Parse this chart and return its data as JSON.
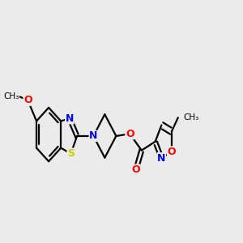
{
  "background_color": "#ebebeb",
  "bond_color": "#000000",
  "atom_colors": {
    "N": "#0000ee",
    "O": "#ff0000",
    "S": "#cccc00",
    "C": "#000000"
  },
  "figsize": [
    3.0,
    3.0
  ],
  "dpi": 100,
  "xlim": [
    0.0,
    1.0
  ],
  "ylim": [
    0.3,
    0.85
  ]
}
